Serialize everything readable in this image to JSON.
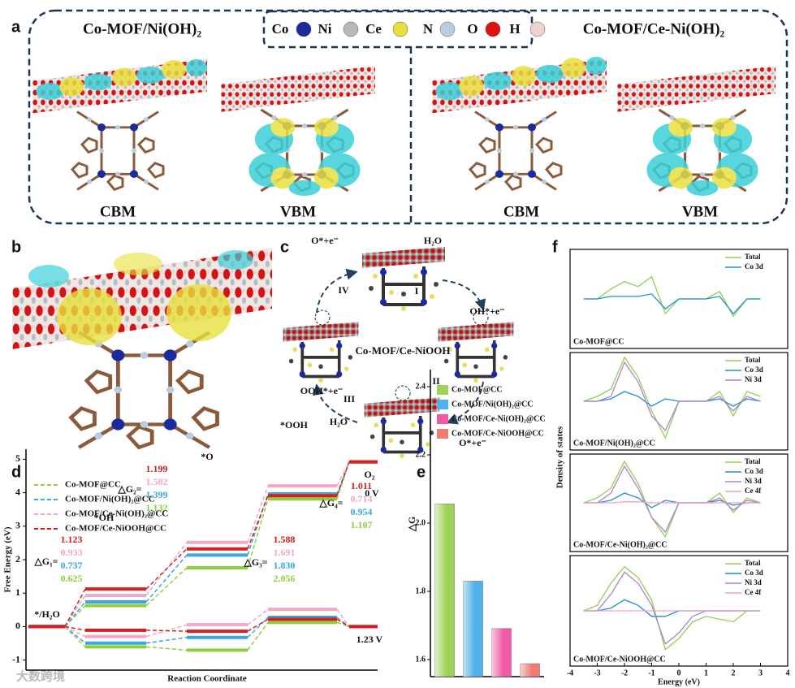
{
  "panel_a": {
    "panel_label": "a",
    "left_title": "Co-MOF/Ni(OH)₂",
    "right_title": "Co-MOF/Ce-Ni(OH)₂",
    "elements": [
      {
        "name": "Co",
        "color": "#1c2a9e"
      },
      {
        "name": "Ni",
        "color": "#b8b8b8"
      },
      {
        "name": "Ce",
        "color": "#e8e03a"
      },
      {
        "name": "N",
        "color": "#b9cde0"
      },
      {
        "name": "O",
        "color": "#e01010"
      },
      {
        "name": "H",
        "color": "#efd2cc"
      }
    ],
    "captions": [
      "CBM",
      "VBM",
      "CBM",
      "VBM"
    ]
  },
  "panel_b": {
    "panel_label": "b"
  },
  "panel_c": {
    "panel_label": "c",
    "center": "Co-MOF/Ce-NiOOH",
    "labels": [
      "H₂O",
      "I",
      "OH*+e⁻",
      "II",
      "O*+e⁻",
      "H₂O",
      "III",
      "OOH*+e⁻",
      "IV",
      "O*+e⁻"
    ]
  },
  "chart_data": [
    {
      "type": "step",
      "panel_label": "d",
      "ylabel": "Free Energy (eV)",
      "xlabel": "Reaction Coordinate",
      "ylim": [
        -1.3,
        5.3
      ],
      "yticks": [
        -1,
        0,
        1,
        2,
        3,
        4,
        5
      ],
      "states": [
        "*/H₂O",
        "*OH",
        "*O",
        "*OOH",
        "O₂"
      ],
      "potentials": [
        "0 V",
        "1.23 V"
      ],
      "delta_labels": [
        "△G₁=",
        "△G₂=",
        "△G₃=",
        "△G₄="
      ],
      "series": [
        {
          "name": "Co-MOF@CC",
          "color": "#8fce3c",
          "values": [
            0,
            0.625,
            1.757,
            3.813,
            4.92
          ],
          "values_123V": [
            0,
            -0.605,
            -0.703,
            0.123,
            0
          ],
          "dg_values": [
            0.625,
            1.132,
            2.056,
            1.107
          ],
          "dg_value_labels": [
            "0.625",
            "1.132",
            "2.056",
            "1.107"
          ]
        },
        {
          "name": "Co-MOF/Ni(OH)₂@CC",
          "color": "#3aa8dc",
          "values": [
            0,
            0.737,
            2.136,
            3.966,
            4.92
          ],
          "values_123V": [
            0,
            -0.493,
            -0.324,
            0.276,
            0
          ],
          "dg_values": [
            0.737,
            1.399,
            1.83,
            0.954
          ],
          "dg_value_labels": [
            "0.737",
            "1.399",
            "1.830",
            "0.954"
          ]
        },
        {
          "name": "Co-MOF/Ce-Ni(OH)₂@CC",
          "color": "#f2a6c8",
          "values": [
            0,
            0.933,
            2.515,
            4.206,
            4.92
          ],
          "values_123V": [
            0,
            -0.297,
            0.055,
            0.516,
            0
          ],
          "dg_values": [
            0.933,
            1.582,
            1.691,
            0.714
          ],
          "dg_value_labels": [
            "0.933",
            "1.582",
            "1.691",
            "0.714"
          ]
        },
        {
          "name": "Co-MOF/Ce-NiOOH@CC",
          "color": "#d42020",
          "values": [
            0,
            1.123,
            2.322,
            3.91,
            4.921
          ],
          "values_123V": [
            0,
            -0.107,
            -0.138,
            0.22,
            0.001
          ],
          "dg_values": [
            1.123,
            1.199,
            1.588,
            1.011
          ],
          "dg_value_labels": [
            "1.123",
            "1.199",
            "1.588",
            "1.011"
          ]
        }
      ]
    },
    {
      "type": "bar",
      "panel_label": "e",
      "ylabel": "△G",
      "ylim": [
        1.55,
        2.45
      ],
      "yticks": [
        1.6,
        1.8,
        {
          "value": 2,
          "label": "2.0"
        },
        2.2,
        2.4
      ],
      "categories": [
        "Co-MOF@CC",
        "Co-MOF/Ni(OH)₂@CC",
        "Co-MOF/Ce-Ni(OH)₂@CC",
        "Co-MOF/Ce-NiOOH@CC"
      ],
      "values": [
        2.056,
        1.83,
        1.691,
        1.588
      ],
      "colors": [
        "#9ed35a",
        "#4fb0ea",
        "#f05aa6",
        "#f07c72"
      ]
    },
    {
      "type": "line",
      "panel_label": "f",
      "ylabel": "Density of states",
      "xlabel": "Energy (eV)",
      "xlim": [
        -4,
        4
      ],
      "xticks": [
        -4,
        -3,
        -2,
        -1,
        0,
        1,
        2,
        3,
        4
      ],
      "x": [
        -3.5,
        -3,
        -2.5,
        -2,
        -1.5,
        -1,
        -0.5,
        0,
        0.5,
        1,
        1.5,
        2,
        2.5,
        3
      ],
      "panels": [
        {
          "title": "Co-MOF@CC",
          "ylim": [
            -1,
            1
          ],
          "series": [
            {
              "name": "Total",
              "color": "#8fd14f",
              "values": [
                0,
                0,
                0.2,
                0.35,
                0.25,
                0.45,
                -0.3,
                0,
                0,
                0,
                0.15,
                -0.35,
                0,
                0
              ]
            },
            {
              "name": "Co 3d",
              "color": "#1e90d0",
              "values": [
                0,
                0,
                0.05,
                0.05,
                0.05,
                0.1,
                -0.2,
                0,
                0,
                0,
                0.05,
                -0.3,
                0,
                0
              ]
            }
          ]
        },
        {
          "title": "Co-MOF/Ni(OH)₂@CC",
          "ylim": [
            -1,
            1
          ],
          "series": [
            {
              "name": "Total",
              "color": "#8fd14f",
              "values": [
                0,
                0.1,
                0.25,
                0.9,
                0.5,
                -0.2,
                -0.75,
                0,
                0,
                0,
                0.2,
                -0.3,
                0.2,
                0.1
              ]
            },
            {
              "name": "Co 3d",
              "color": "#1e90d0",
              "values": [
                0,
                0,
                0.05,
                0.2,
                0.1,
                -0.1,
                0.05,
                0,
                0,
                0,
                0.05,
                -0.1,
                0.05,
                0
              ]
            },
            {
              "name": "Ni 3d",
              "color": "#b080d0",
              "values": [
                0,
                0,
                0.1,
                0.8,
                0.4,
                -0.3,
                -0.6,
                0,
                0,
                0,
                0.1,
                -0.2,
                0.1,
                0
              ]
            }
          ]
        },
        {
          "title": "Co-MOF/Ce-Ni(OH)₂@CC",
          "ylim": [
            -1,
            1
          ],
          "series": [
            {
              "name": "Total",
              "color": "#8fd14f",
              "values": [
                0,
                0.1,
                0.3,
                0.85,
                0.4,
                -0.3,
                -0.7,
                0,
                0,
                0,
                0.2,
                -0.2,
                0.1,
                0
              ]
            },
            {
              "name": "Co 3d",
              "color": "#1e90d0",
              "values": [
                0,
                0,
                0.05,
                0.2,
                0.1,
                -0.1,
                0.05,
                0,
                0,
                0,
                0.05,
                -0.05,
                0,
                0
              ]
            },
            {
              "name": "Ni 3d",
              "color": "#b080d0",
              "values": [
                0,
                0,
                0.2,
                0.75,
                0.3,
                -0.3,
                -0.6,
                0,
                0,
                0,
                0.1,
                -0.15,
                0.05,
                0
              ]
            },
            {
              "name": "Ce 4f",
              "color": "#f0a0c0",
              "values": [
                0,
                0,
                0,
                0.02,
                0.02,
                0,
                0,
                0,
                0,
                0,
                0,
                0,
                0,
                0
              ]
            }
          ]
        },
        {
          "title": "Co-MOF/Ce-NiOOH@CC",
          "ylim": [
            -1,
            1
          ],
          "series": [
            {
              "name": "Total",
              "color": "#8fd14f",
              "values": [
                0,
                0.1,
                0.5,
                0.8,
                0.6,
                0.2,
                -0.7,
                -0.5,
                -0.2,
                -0.1,
                -0.15,
                -0.2,
                0,
                0
              ]
            },
            {
              "name": "Co 3d",
              "color": "#1e90d0",
              "values": [
                0,
                0,
                0.05,
                0.2,
                0.1,
                -0.1,
                -0.1,
                0,
                0,
                0,
                0,
                0,
                0,
                0
              ]
            },
            {
              "name": "Ni 3d",
              "color": "#b080d0",
              "values": [
                0,
                0,
                0.3,
                0.7,
                0.5,
                0.1,
                -0.6,
                -0.4,
                -0.1,
                0,
                0,
                0,
                0,
                0
              ]
            },
            {
              "name": "Ce 4f",
              "color": "#f0a0c0",
              "values": [
                0,
                0,
                0,
                0,
                0,
                0,
                0,
                0,
                0,
                0,
                0,
                0,
                0,
                0
              ]
            }
          ]
        }
      ]
    }
  ],
  "watermark": "大数跨境"
}
